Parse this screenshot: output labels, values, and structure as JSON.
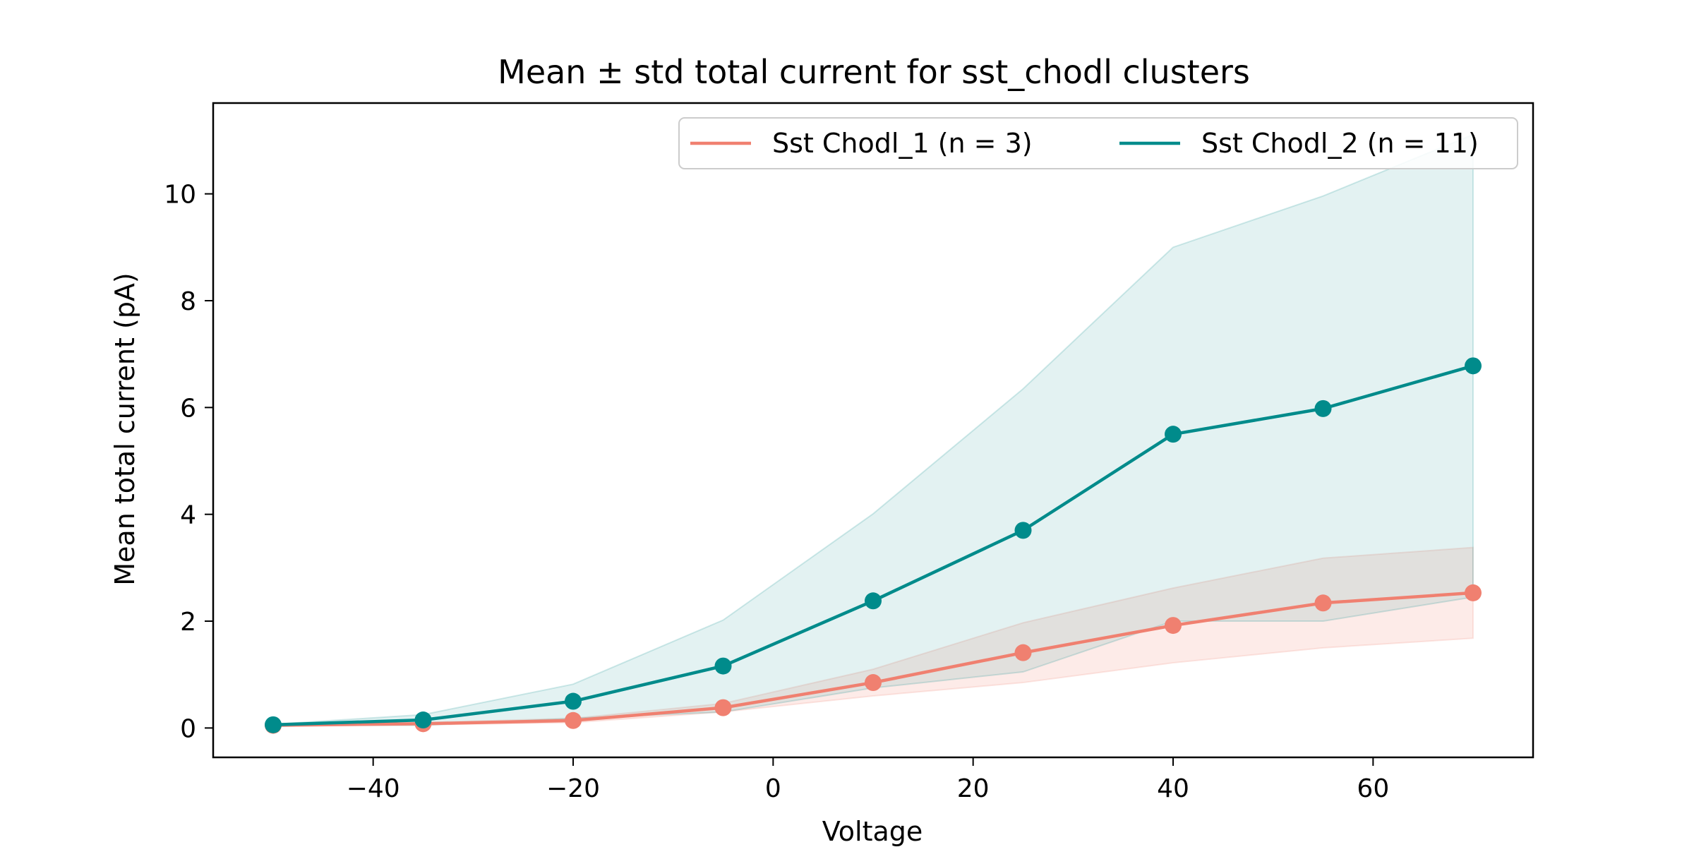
{
  "chart_data": {
    "type": "line",
    "title": "Mean ± std total current for sst_chodl clusters",
    "xlabel": "Voltage",
    "ylabel": "Mean total current (pA)",
    "xlim": [
      -56,
      76
    ],
    "ylim": [
      -0.55,
      11.7
    ],
    "xticks": [
      -40,
      -20,
      0,
      20,
      40,
      60
    ],
    "xtick_labels": [
      "−40",
      "−20",
      "0",
      "20",
      "40",
      "60"
    ],
    "yticks": [
      0,
      2,
      4,
      6,
      8,
      10
    ],
    "ytick_labels": [
      "0",
      "2",
      "4",
      "6",
      "8",
      "10"
    ],
    "grid": false,
    "legend_position": "top-right",
    "x": [
      -50,
      -35,
      -20,
      -5,
      10,
      25,
      40,
      55,
      70
    ],
    "series": [
      {
        "name": "Sst Chodl_1 (n = 3)",
        "color": "#f08070",
        "mean": [
          0.05,
          0.08,
          0.14,
          0.38,
          0.85,
          1.41,
          1.92,
          2.34,
          2.53
        ],
        "lower": [
          0.04,
          0.06,
          0.1,
          0.3,
          0.6,
          0.85,
          1.22,
          1.5,
          1.68
        ],
        "upper": [
          0.06,
          0.1,
          0.18,
          0.46,
          1.1,
          1.97,
          2.62,
          3.18,
          3.38
        ]
      },
      {
        "name": "Sst Chodl_2 (n = 11)",
        "color": "#008b8b",
        "mean": [
          0.06,
          0.15,
          0.5,
          1.16,
          2.38,
          3.7,
          5.5,
          5.98,
          6.78
        ],
        "lower": [
          0.05,
          0.05,
          0.18,
          0.3,
          0.75,
          1.05,
          2.0,
          2.0,
          2.45
        ],
        "upper": [
          0.07,
          0.25,
          0.82,
          2.02,
          4.01,
          6.35,
          9.0,
          9.96,
          11.11
        ]
      }
    ]
  }
}
